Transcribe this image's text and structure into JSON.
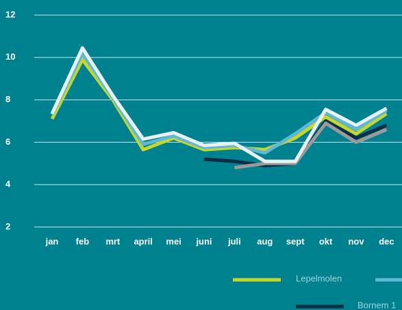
{
  "chart_data": {
    "type": "line",
    "categories": [
      "jan",
      "feb",
      "mrt",
      "april",
      "mei",
      "juni",
      "juli",
      "aug",
      "sept",
      "okt",
      "nov",
      "dec"
    ],
    "series": [
      {
        "name": "Lepelmolen",
        "color": "#c8d62b",
        "values": [
          7.1,
          9.9,
          8.0,
          5.65,
          6.2,
          5.65,
          5.75,
          5.65,
          6.2,
          7.2,
          6.4,
          7.35
        ]
      },
      {
        "color": "#5fb8d4",
        "values": [
          7.3,
          10.2,
          8.1,
          5.9,
          6.3,
          5.75,
          5.85,
          5.5,
          6.4,
          7.4,
          6.6,
          7.5
        ]
      },
      {
        "name": "Bornem 1",
        "color": "#0b2c45",
        "values": [
          null,
          null,
          null,
          null,
          null,
          5.2,
          5.1,
          4.9,
          5.0,
          7.0,
          6.2,
          6.8
        ]
      },
      {
        "color": "#9a9a9a",
        "values": [
          null,
          null,
          null,
          null,
          null,
          null,
          4.8,
          5.0,
          5.0,
          6.9,
          6.0,
          6.6
        ]
      },
      {
        "color": "#e8f1f3",
        "values": [
          7.35,
          10.45,
          8.2,
          6.15,
          6.45,
          5.85,
          5.95,
          5.1,
          5.1,
          7.55,
          6.8,
          7.6
        ]
      }
    ],
    "ylim": [
      2,
      12
    ],
    "yticks": [
      2,
      4,
      6,
      8,
      10,
      12
    ],
    "grid": true
  }
}
